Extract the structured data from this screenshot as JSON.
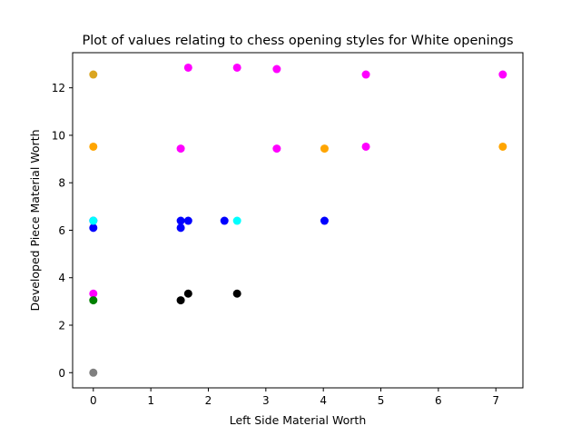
{
  "chart_data": {
    "type": "scatter",
    "title": "Plot of values relating to chess opening styles for White openings",
    "xlabel": "Left Side Material Worth",
    "ylabel": "Developed Piece Material Worth",
    "xlim": [
      -0.36,
      7.47
    ],
    "ylim": [
      -0.64,
      13.48
    ],
    "xticks": [
      "0",
      "1",
      "2",
      "3",
      "4",
      "5",
      "6",
      "7"
    ],
    "xtick_values": [
      0,
      1,
      2,
      3,
      4,
      5,
      6,
      7
    ],
    "yticks": [
      "0",
      "2",
      "4",
      "6",
      "8",
      "10",
      "12"
    ],
    "ytick_values": [
      0,
      2,
      4,
      6,
      8,
      10,
      12
    ],
    "grid": false,
    "series": [
      {
        "color": "#DAA520",
        "points": [
          [
            0,
            12.56
          ]
        ]
      },
      {
        "color": "#FFA500",
        "points": [
          [
            0,
            9.52
          ],
          [
            4.02,
            9.44
          ],
          [
            7.12,
            9.52
          ]
        ]
      },
      {
        "color": "#FF00FF",
        "points": [
          [
            1.65,
            12.85
          ],
          [
            2.5,
            12.85
          ],
          [
            3.19,
            12.79
          ],
          [
            4.74,
            12.56
          ],
          [
            7.12,
            12.56
          ],
          [
            1.52,
            9.44
          ],
          [
            3.19,
            9.44
          ],
          [
            4.74,
            9.52
          ],
          [
            0,
            3.33
          ]
        ]
      },
      {
        "color": "#0000FF",
        "points": [
          [
            0,
            6.1
          ],
          [
            0,
            6.4
          ],
          [
            1.52,
            6.1
          ],
          [
            1.52,
            6.4
          ],
          [
            1.65,
            6.4
          ],
          [
            2.28,
            6.4
          ],
          [
            4.02,
            6.4
          ]
        ]
      },
      {
        "color": "#00FFFF",
        "points": [
          [
            0,
            6.4
          ],
          [
            2.5,
            6.4
          ]
        ]
      },
      {
        "color": "#000000",
        "points": [
          [
            1.52,
            3.05
          ],
          [
            1.65,
            3.33
          ],
          [
            2.5,
            3.33
          ]
        ]
      },
      {
        "color": "#008000",
        "points": [
          [
            0,
            3.05
          ]
        ]
      },
      {
        "color": "#808080",
        "points": [
          [
            0,
            0
          ]
        ]
      }
    ]
  }
}
